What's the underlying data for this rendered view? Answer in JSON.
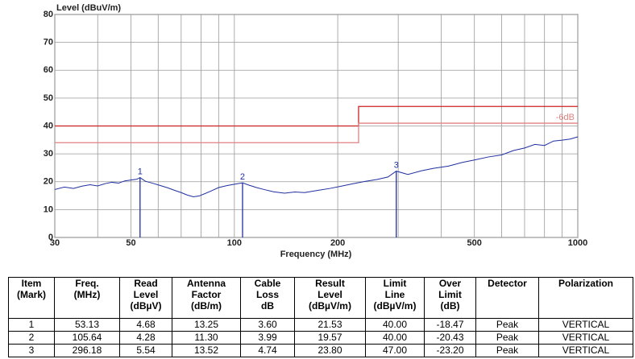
{
  "chart_data": {
    "type": "line",
    "ylabel": "Level (dBuV/m)",
    "xlabel": "Frequency (MHz)",
    "log_x": true,
    "grid": true,
    "xlim": [
      30,
      1000
    ],
    "xticks": [
      30,
      50,
      100,
      200,
      500,
      1000
    ],
    "xminor": [
      40,
      60,
      70,
      80,
      90,
      300,
      400,
      600,
      700,
      800,
      900
    ],
    "ylim": [
      0,
      80
    ],
    "yticks": [
      0,
      10,
      20,
      30,
      40,
      50,
      60,
      70,
      80
    ],
    "series": [
      {
        "color": "#1f2fa0",
        "x": [
          30,
          32,
          34,
          36,
          38,
          40,
          42,
          44,
          46,
          48,
          50,
          52,
          53.13,
          55,
          58,
          61,
          64,
          67,
          70,
          73,
          76,
          79,
          82,
          86,
          90,
          95,
          100,
          105.64,
          110,
          116,
          122,
          130,
          140,
          150,
          160,
          175,
          190,
          205,
          220,
          240,
          260,
          280,
          296.18,
          320,
          350,
          380,
          420,
          460,
          500,
          550,
          600,
          650,
          700,
          750,
          800,
          850,
          900,
          950,
          1000
        ],
        "values": [
          17.2,
          18.1,
          17.6,
          18.4,
          18.9,
          18.5,
          19.3,
          19.8,
          19.5,
          20.3,
          20.6,
          20.9,
          21.5,
          20.2,
          19.4,
          18.6,
          17.8,
          16.9,
          16.1,
          15.2,
          14.6,
          14.9,
          15.7,
          16.8,
          17.9,
          18.6,
          19.1,
          19.6,
          18.8,
          17.9,
          17.2,
          16.4,
          15.9,
          16.3,
          16.1,
          16.9,
          17.6,
          18.4,
          19.2,
          20.1,
          20.8,
          21.7,
          23.8,
          22.6,
          23.9,
          24.8,
          25.6,
          26.9,
          27.8,
          28.9,
          29.6,
          31.2,
          32.1,
          33.4,
          33.0,
          34.6,
          34.9,
          35.3,
          36.1
        ]
      }
    ],
    "limits": [
      {
        "color": "#cc2222",
        "x": [
          30,
          230,
          230,
          1000
        ],
        "values": [
          40,
          40,
          47,
          47
        ]
      },
      {
        "color": "#e08080",
        "label": "-6dB",
        "x": [
          30,
          230,
          230,
          1000
        ],
        "values": [
          34,
          34,
          41,
          41
        ]
      }
    ],
    "markers": [
      {
        "label": "1",
        "x": 53.13,
        "y": 21.53
      },
      {
        "label": "2",
        "x": 105.64,
        "y": 19.57
      },
      {
        "label": "3",
        "x": 296.18,
        "y": 23.8
      }
    ],
    "marker_color": "#1f2fa0"
  },
  "table": {
    "columns": [
      {
        "title": [
          "Item"
        ],
        "unit": "(Mark)"
      },
      {
        "title": [
          "Freq."
        ],
        "unit": "(MHz)"
      },
      {
        "title": [
          "Read",
          "Level"
        ],
        "unit": "(dBµV)"
      },
      {
        "title": [
          "Antenna",
          "Factor"
        ],
        "unit": "(dB/m)"
      },
      {
        "title": [
          "Cable",
          "Loss"
        ],
        "unit": "dB"
      },
      {
        "title": [
          "Result",
          "Level"
        ],
        "unit": "(dBµV/m)"
      },
      {
        "title": [
          "Limit",
          "Line"
        ],
        "unit": "(dBµV/m)"
      },
      {
        "title": [
          "Over",
          "Limit"
        ],
        "unit": "(dB)"
      },
      {
        "title": [
          "Detector"
        ]
      },
      {
        "title": [
          "Polarization"
        ]
      }
    ],
    "rows": [
      [
        "1",
        "53.13",
        "4.68",
        "13.25",
        "3.60",
        "21.53",
        "40.00",
        "-18.47",
        "Peak",
        "VERTICAL"
      ],
      [
        "2",
        "105.64",
        "4.28",
        "11.30",
        "3.99",
        "19.57",
        "40.00",
        "-20.43",
        "Peak",
        "VERTICAL"
      ],
      [
        "3",
        "296.18",
        "5.54",
        "13.52",
        "4.74",
        "23.80",
        "47.00",
        "-23.20",
        "Peak",
        "VERTICAL"
      ]
    ]
  }
}
